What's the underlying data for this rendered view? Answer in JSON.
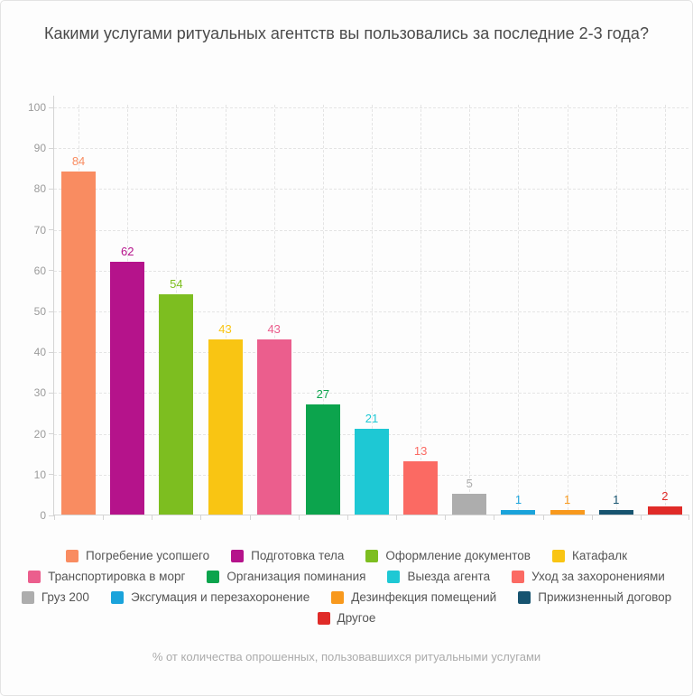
{
  "chart_data": {
    "type": "bar",
    "title": "Какими услугами ритуальных агентств вы пользовались за последние 2-3 года?",
    "footnote": "% от количества опрошенных, пользовавшихся ритуальными услугами",
    "categories": [
      "Погребение усопшего",
      "Подготовка тела",
      "Оформление документов",
      "Катафалк",
      "Транспортировка в морг",
      "Организация поминания",
      "Выезда агента",
      "Уход за захоронениями",
      "Груз 200",
      "Эксгумация и перезахоронение",
      "Дезинфекция помещений",
      "Прижизненный договор",
      "Другое"
    ],
    "values": [
      84,
      62,
      54,
      43,
      43,
      27,
      21,
      13,
      5,
      1,
      1,
      1,
      2
    ],
    "colors": [
      "#F98C61",
      "#B5138B",
      "#7DBE20",
      "#F9C513",
      "#EB5E8D",
      "#0CA44D",
      "#1EC8D4",
      "#FB6A63",
      "#ADADAD",
      "#1AA3DB",
      "#F8991D",
      "#175470",
      "#E02B28"
    ],
    "xlabel": "",
    "ylabel": "",
    "ylim": [
      0,
      100
    ],
    "yticks": [
      0,
      10,
      20,
      30,
      40,
      50,
      60,
      70,
      80,
      90,
      100
    ],
    "grid": true,
    "legend_position": "bottom",
    "value_labels": true
  }
}
